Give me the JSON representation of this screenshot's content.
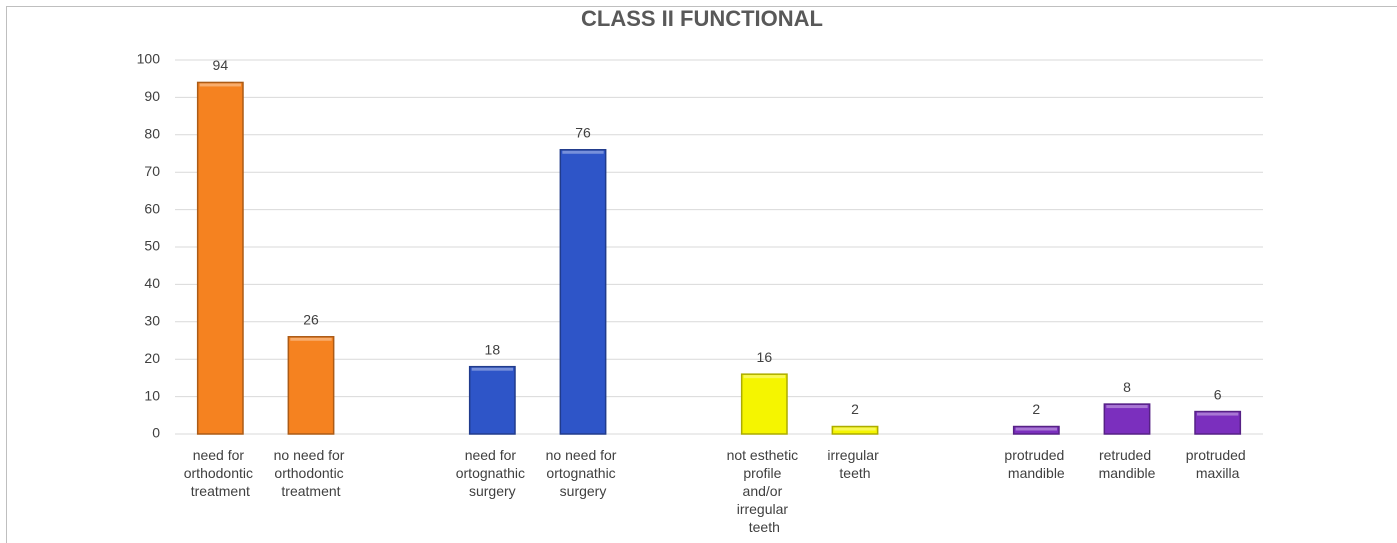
{
  "chart_data": {
    "type": "bar",
    "title": "CLASS II FUNCTIONAL",
    "categories": [
      "need for orthodontic treatment",
      "no need for orthodontic treatment",
      null,
      "need for ortognathic surgery",
      "no need for ortognathic surgery",
      null,
      "not esthetic profile and/or irregular teeth",
      "irregular teeth",
      null,
      "protruded mandible",
      "retruded mandible",
      "protruded maxilla"
    ],
    "values": [
      94,
      26,
      null,
      18,
      76,
      null,
      16,
      2,
      null,
      2,
      8,
      6
    ],
    "colors": [
      "#f58220",
      "#f58220",
      null,
      "#2e55c8",
      "#2e55c8",
      null,
      "#f5f500",
      "#f5f500",
      null,
      "#7b2fbe",
      "#7b2fbe",
      "#7b2fbe"
    ],
    "ylim": [
      0,
      100
    ],
    "yticks": [
      0,
      10,
      20,
      30,
      40,
      50,
      60,
      70,
      80,
      90,
      100
    ],
    "grid": true
  }
}
